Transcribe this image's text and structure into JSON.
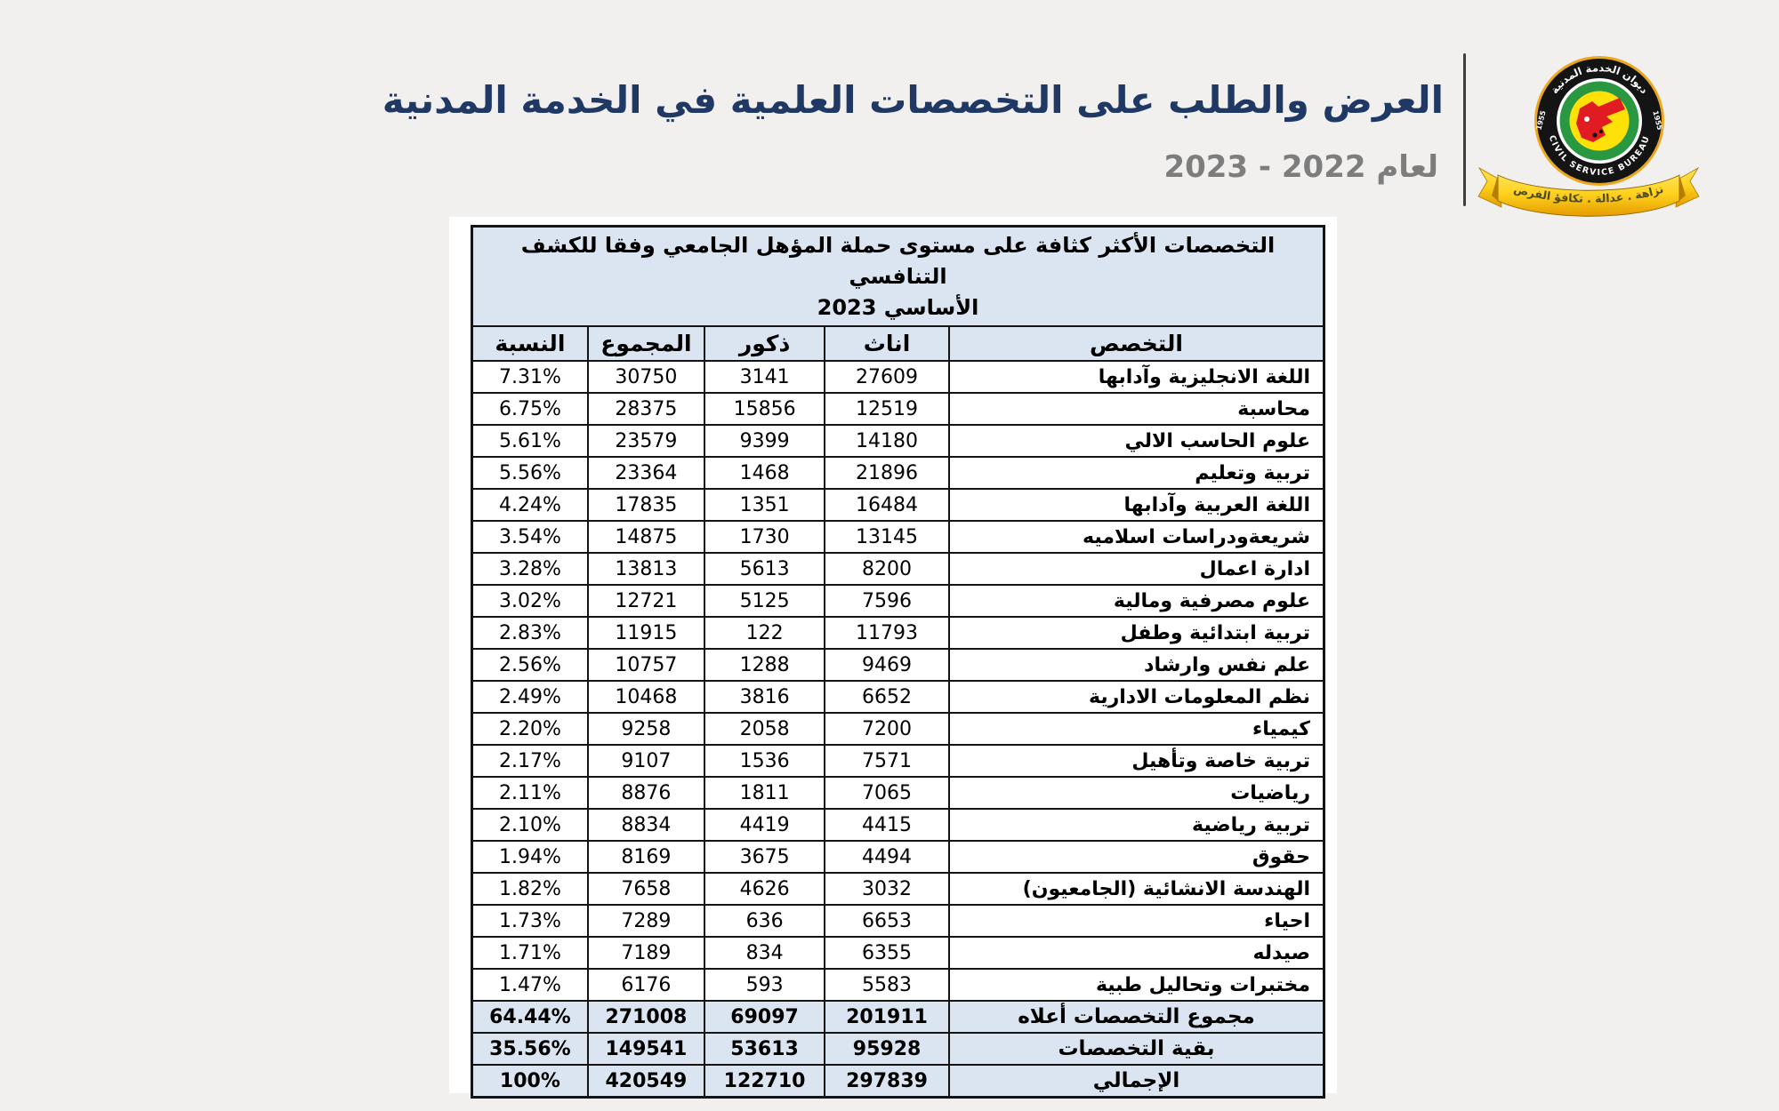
{
  "page": {
    "background_color": "#f1f0ee"
  },
  "header": {
    "title": "العرض والطلب على التخصصات العلمية في الخدمة المدنية",
    "subtitle": "لعام 2022 - 2023",
    "title_color": "#1f3864",
    "subtitle_color": "#7d7d7d"
  },
  "logo": {
    "ring_text_top": "ديوان الخدمة المدنية",
    "ring_text_bottom": "CIVIL SERVICE BUREAU",
    "ring_year": "1955",
    "ribbon_text": "نزاهة . عدالة . تكافؤ الفرص",
    "colors": {
      "gold_rim": "#e9a820",
      "ring_black": "#141414",
      "ring_green": "#2a9841",
      "center_yellow": "#ffe10a",
      "map_red": "#e01b22",
      "ribbon_yellow": "#ffd21e"
    }
  },
  "table": {
    "caption_line1": "التخصصات الأكثر كثافة على مستوى حملة المؤهل الجامعي وفقا للكشف التنافسي",
    "caption_line2": "الأساسي 2023",
    "columns": [
      "التخصص",
      "اناث",
      "ذكور",
      "المجموع",
      "النسبة"
    ],
    "header_fill": "#dbe5f1",
    "border_color": "#141414",
    "rows": [
      {
        "name": "اللغة الانجليزية وآدابها",
        "females": "27609",
        "males": "3141",
        "total": "30750",
        "percent": "7.31%"
      },
      {
        "name": "محاسبة",
        "females": "12519",
        "males": "15856",
        "total": "28375",
        "percent": "6.75%"
      },
      {
        "name": "علوم الحاسب الالي",
        "females": "14180",
        "males": "9399",
        "total": "23579",
        "percent": "5.61%"
      },
      {
        "name": "تربية وتعليم",
        "females": "21896",
        "males": "1468",
        "total": "23364",
        "percent": "5.56%"
      },
      {
        "name": "اللغة العربية وآدابها",
        "females": "16484",
        "males": "1351",
        "total": "17835",
        "percent": "4.24%"
      },
      {
        "name": "شريعةودراسات اسلاميه",
        "females": "13145",
        "males": "1730",
        "total": "14875",
        "percent": "3.54%"
      },
      {
        "name": "ادارة اعمال",
        "females": "8200",
        "males": "5613",
        "total": "13813",
        "percent": "3.28%"
      },
      {
        "name": "علوم مصرفية ومالية",
        "females": "7596",
        "males": "5125",
        "total": "12721",
        "percent": "3.02%"
      },
      {
        "name": "تربية ابتدائية وطفل",
        "females": "11793",
        "males": "122",
        "total": "11915",
        "percent": "2.83%"
      },
      {
        "name": "علم نفس وارشاد",
        "females": "9469",
        "males": "1288",
        "total": "10757",
        "percent": "2.56%"
      },
      {
        "name": "نظم المعلومات الادارية",
        "females": "6652",
        "males": "3816",
        "total": "10468",
        "percent": "2.49%"
      },
      {
        "name": "كيمياء",
        "females": "7200",
        "males": "2058",
        "total": "9258",
        "percent": "2.20%"
      },
      {
        "name": "تربية خاصة وتأهيل",
        "females": "7571",
        "males": "1536",
        "total": "9107",
        "percent": "2.17%"
      },
      {
        "name": "رياضيات",
        "females": "7065",
        "males": "1811",
        "total": "8876",
        "percent": "2.11%"
      },
      {
        "name": "تربية رياضية",
        "females": "4415",
        "males": "4419",
        "total": "8834",
        "percent": "2.10%"
      },
      {
        "name": "حقوق",
        "females": "4494",
        "males": "3675",
        "total": "8169",
        "percent": "1.94%"
      },
      {
        "name": "الهندسة الانشائية (الجامعيون)",
        "females": "3032",
        "males": "4626",
        "total": "7658",
        "percent": "1.82%"
      },
      {
        "name": "احياء",
        "females": "6653",
        "males": "636",
        "total": "7289",
        "percent": "1.73%"
      },
      {
        "name": "صيدله",
        "females": "6355",
        "males": "834",
        "total": "7189",
        "percent": "1.71%"
      },
      {
        "name": "مختبرات وتحاليل طبية",
        "females": "5583",
        "males": "593",
        "total": "6176",
        "percent": "1.47%"
      }
    ],
    "summary_rows": [
      {
        "name": "مجموع التخصصات أعلاه",
        "females": "201911",
        "males": "69097",
        "total": "271008",
        "percent": "64.44%"
      },
      {
        "name": "بقية التخصصات",
        "females": "95928",
        "males": "53613",
        "total": "149541",
        "percent": "35.56%"
      },
      {
        "name": "الإجمالي",
        "females": "297839",
        "males": "122710",
        "total": "420549",
        "percent": "100%"
      }
    ]
  }
}
